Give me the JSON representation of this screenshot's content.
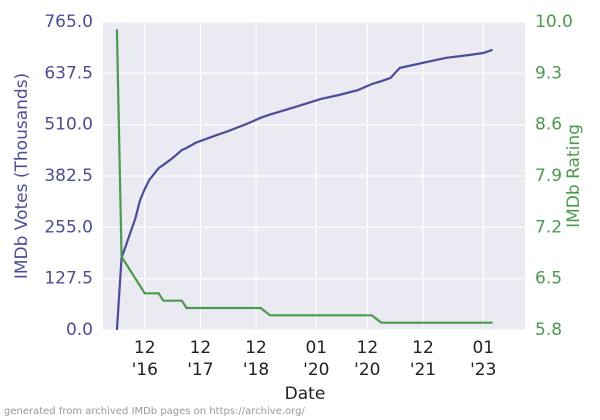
{
  "chart_data": {
    "type": "line",
    "x_label": "Date",
    "y_label": "IMDb Votes (Thousands)",
    "y2_label": "IMDb Rating",
    "footer": "generated from archived IMDb pages on https://archive.org/",
    "x": [
      "2016-06",
      "2016-07",
      "2016-10",
      "2016-11",
      "2016-12",
      "2017-01",
      "2017-03",
      "2017-04",
      "2017-06",
      "2017-08",
      "2017-09",
      "2017-11",
      "2018-03",
      "2018-06",
      "2018-10",
      "2019-01",
      "2019-03",
      "2019-05",
      "2019-09",
      "2020-02",
      "2020-06",
      "2020-10",
      "2021-01",
      "2021-03",
      "2021-05",
      "2021-07",
      "2021-09",
      "2022-01",
      "2022-05",
      "2022-10",
      "2023-01",
      "2023-03"
    ],
    "series": [
      {
        "name": "IMDb Votes (Thousands)",
        "color": "#4c4c9c",
        "values": [
          0,
          179,
          278,
          323,
          350,
          373,
          402,
          410,
          427,
          447,
          452,
          465,
          482,
          494,
          512,
          527,
          535,
          542,
          556,
          574,
          584,
          596,
          611,
          618,
          626,
          651,
          656,
          666,
          676,
          683,
          688,
          696
        ]
      },
      {
        "name": "IMDb Rating",
        "color": "#4c9a4c",
        "axis": "y2",
        "values": [
          9.9,
          6.8,
          6.5,
          6.4,
          6.3,
          6.3,
          6.3,
          6.2,
          6.2,
          6.2,
          6.1,
          6.1,
          6.1,
          6.1,
          6.1,
          6.1,
          6.0,
          6.0,
          6.0,
          6.0,
          6.0,
          6.0,
          6.0,
          5.9,
          5.9,
          5.9,
          5.9,
          5.9,
          5.9,
          5.9,
          5.9,
          5.9
        ]
      }
    ],
    "xlim": [
      "2016-03",
      "2023-10"
    ],
    "xticks": [
      {
        "value": "2016-12",
        "label": "12\n'16"
      },
      {
        "value": "2017-12",
        "label": "12\n'17"
      },
      {
        "value": "2018-12",
        "label": "12\n'18"
      },
      {
        "value": "2020-01",
        "label": "01\n'20"
      },
      {
        "value": "2020-12",
        "label": "12\n'20"
      },
      {
        "value": "2021-12",
        "label": "12\n'21"
      },
      {
        "value": "2023-01",
        "label": "01\n'23"
      }
    ],
    "ylim": [
      0,
      765
    ],
    "yticks": [
      {
        "value": 0,
        "label": "0.0"
      },
      127.5,
      {
        "value": 255,
        "label": "255.0"
      },
      382.5,
      {
        "value": 510,
        "label": "510.0"
      },
      637.5,
      {
        "value": 765,
        "label": "765.0"
      }
    ],
    "y2lim": [
      5.8,
      10.0
    ],
    "y2ticks": [
      5.8,
      6.5,
      7.2,
      7.9,
      8.6,
      9.3,
      {
        "value": 10,
        "label": "10.0"
      }
    ],
    "grid": true
  }
}
